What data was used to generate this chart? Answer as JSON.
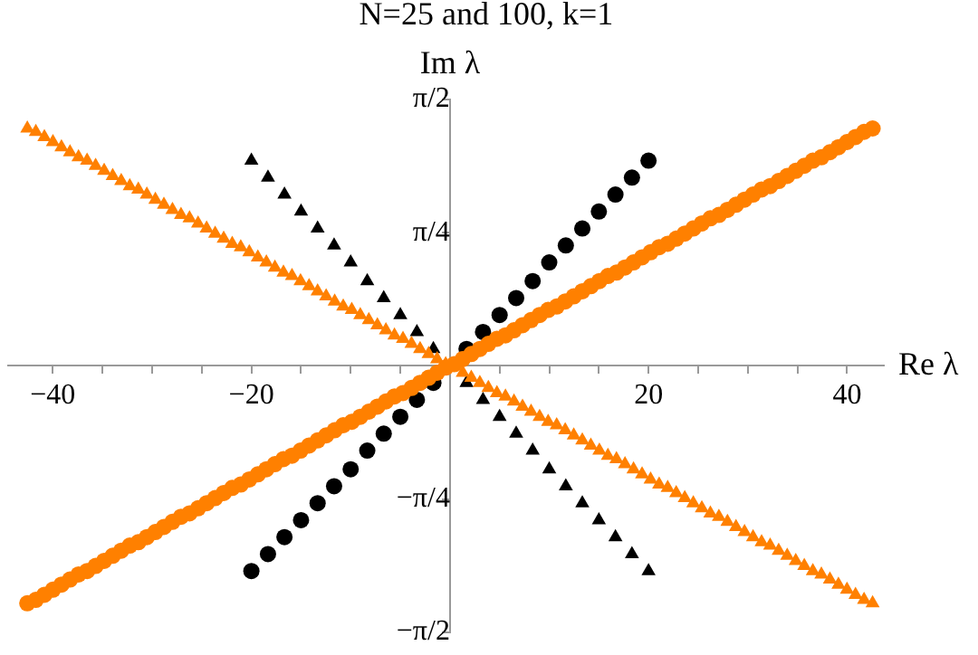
{
  "chart_data": {
    "type": "scatter",
    "title": "N=25 and 100, k=1",
    "xlabel": "Re λ",
    "ylabel": "Im λ",
    "xlim": [
      -44.5,
      43.7
    ],
    "ylim": [
      -1.5708,
      1.5708
    ],
    "xticks": [
      -40,
      {
        "value": -35,
        "label": null
      },
      {
        "value": -30,
        "label": null
      },
      {
        "value": -25,
        "label": null
      },
      -20,
      {
        "value": -15,
        "label": null
      },
      {
        "value": -10,
        "label": null
      },
      {
        "value": -5,
        "label": null
      },
      {
        "value": 5,
        "label": null
      },
      {
        "value": 10,
        "label": null
      },
      {
        "value": 15,
        "label": null
      },
      20,
      {
        "value": 25,
        "label": null
      },
      {
        "value": 30,
        "label": null
      },
      {
        "value": 35,
        "label": null
      },
      40
    ],
    "yticks": [
      {
        "value": -1.5708,
        "label": "−π/2"
      },
      {
        "value": -0.7854,
        "label": "−π/4"
      },
      {
        "value": 0.7854,
        "label": "π/4"
      },
      {
        "value": 1.5708,
        "label": "π/2"
      }
    ],
    "grid": false,
    "legend": false,
    "series": [
      {
        "color": "#ff8000",
        "marker": "circle",
        "x": [
          -42.57,
          -41.71,
          -40.85,
          -39.99,
          -39.13,
          -38.27,
          -37.41,
          -36.55,
          -35.69,
          -34.83,
          -33.97,
          -33.11,
          -32.25,
          -31.39,
          -30.53,
          -29.67,
          -28.81,
          -27.95,
          -27.09,
          -26.23,
          -25.37,
          -24.51,
          -23.65,
          -22.79,
          -21.93,
          -21.07,
          -20.21,
          -19.35,
          -18.49,
          -17.63,
          -16.77,
          -15.91,
          -15.05,
          -14.19,
          -13.33,
          -12.47,
          -11.61,
          -10.75,
          -9.89,
          -9.03,
          -8.17,
          -7.31,
          -6.45,
          -5.59,
          -4.73,
          -3.87,
          -3.01,
          -2.15,
          -1.29,
          -0.43,
          0.43,
          1.29,
          2.15,
          3.01,
          3.87,
          4.73,
          5.59,
          6.45,
          7.31,
          8.17,
          9.03,
          9.89,
          10.75,
          11.61,
          12.47,
          13.33,
          14.19,
          15.05,
          15.91,
          16.77,
          17.63,
          18.49,
          19.35,
          20.21,
          21.07,
          21.93,
          22.79,
          23.65,
          24.51,
          25.37,
          26.23,
          27.09,
          27.95,
          28.81,
          29.67,
          30.53,
          31.39,
          32.25,
          33.11,
          33.97,
          34.83,
          35.69,
          36.55,
          37.41,
          38.27,
          39.13,
          39.99,
          40.85,
          41.71,
          42.57
        ],
        "values": [
          -1.4,
          -1.38,
          -1.35,
          -1.32,
          -1.29,
          -1.26,
          -1.23,
          -1.21,
          -1.18,
          -1.15,
          -1.12,
          -1.09,
          -1.06,
          -1.04,
          -1.01,
          -0.98,
          -0.95,
          -0.92,
          -0.89,
          -0.87,
          -0.84,
          -0.81,
          -0.78,
          -0.75,
          -0.72,
          -0.7,
          -0.67,
          -0.64,
          -0.61,
          -0.58,
          -0.55,
          -0.53,
          -0.5,
          -0.47,
          -0.44,
          -0.41,
          -0.38,
          -0.35,
          -0.33,
          -0.3,
          -0.27,
          -0.24,
          -0.21,
          -0.18,
          -0.16,
          -0.13,
          -0.1,
          -0.07,
          -0.04,
          -0.01,
          0.01,
          0.04,
          0.07,
          0.1,
          0.13,
          0.16,
          0.18,
          0.21,
          0.24,
          0.27,
          0.3,
          0.33,
          0.35,
          0.38,
          0.41,
          0.44,
          0.47,
          0.5,
          0.53,
          0.55,
          0.58,
          0.61,
          0.64,
          0.67,
          0.7,
          0.72,
          0.75,
          0.78,
          0.81,
          0.84,
          0.87,
          0.89,
          0.92,
          0.95,
          0.98,
          1.01,
          1.04,
          1.06,
          1.09,
          1.12,
          1.15,
          1.18,
          1.21,
          1.23,
          1.26,
          1.29,
          1.32,
          1.35,
          1.38,
          1.4
        ]
      },
      {
        "color": "#ff8000",
        "marker": "triangle",
        "x": [
          -42.57,
          -41.71,
          -40.85,
          -39.99,
          -39.13,
          -38.27,
          -37.41,
          -36.55,
          -35.69,
          -34.83,
          -33.97,
          -33.11,
          -32.25,
          -31.39,
          -30.53,
          -29.67,
          -28.81,
          -27.95,
          -27.09,
          -26.23,
          -25.37,
          -24.51,
          -23.65,
          -22.79,
          -21.93,
          -21.07,
          -20.21,
          -19.35,
          -18.49,
          -17.63,
          -16.77,
          -15.91,
          -15.05,
          -14.19,
          -13.33,
          -12.47,
          -11.61,
          -10.75,
          -9.89,
          -9.03,
          -8.17,
          -7.31,
          -6.45,
          -5.59,
          -4.73,
          -3.87,
          -3.01,
          -2.15,
          -1.29,
          -0.43,
          0.43,
          1.29,
          2.15,
          3.01,
          3.87,
          4.73,
          5.59,
          6.45,
          7.31,
          8.17,
          9.03,
          9.89,
          10.75,
          11.61,
          12.47,
          13.33,
          14.19,
          15.05,
          15.91,
          16.77,
          17.63,
          18.49,
          19.35,
          20.21,
          21.07,
          21.93,
          22.79,
          23.65,
          24.51,
          25.37,
          26.23,
          27.09,
          27.95,
          28.81,
          29.67,
          30.53,
          31.39,
          32.25,
          33.11,
          33.97,
          34.83,
          35.69,
          36.55,
          37.41,
          38.27,
          39.13,
          39.99,
          40.85,
          41.71,
          42.57
        ],
        "values": [
          1.4,
          1.38,
          1.35,
          1.32,
          1.29,
          1.26,
          1.23,
          1.21,
          1.18,
          1.15,
          1.12,
          1.09,
          1.06,
          1.04,
          1.01,
          0.98,
          0.95,
          0.92,
          0.89,
          0.87,
          0.84,
          0.81,
          0.78,
          0.75,
          0.72,
          0.7,
          0.67,
          0.64,
          0.61,
          0.58,
          0.55,
          0.53,
          0.5,
          0.47,
          0.44,
          0.41,
          0.38,
          0.35,
          0.33,
          0.3,
          0.27,
          0.24,
          0.21,
          0.18,
          0.16,
          0.13,
          0.1,
          0.07,
          0.04,
          0.01,
          null,
          -0.04,
          -0.07,
          -0.1,
          -0.13,
          -0.16,
          -0.18,
          -0.21,
          -0.24,
          -0.27,
          -0.3,
          -0.33,
          -0.35,
          -0.38,
          -0.41,
          -0.44,
          -0.47,
          -0.5,
          -0.53,
          -0.55,
          -0.58,
          -0.61,
          -0.64,
          -0.67,
          -0.7,
          -0.72,
          -0.75,
          -0.78,
          -0.81,
          -0.84,
          -0.87,
          -0.89,
          -0.92,
          -0.95,
          -0.98,
          -1.01,
          -1.04,
          -1.06,
          -1.09,
          -1.12,
          -1.15,
          -1.18,
          -1.21,
          -1.23,
          -1.26,
          -1.29,
          -1.32,
          -1.35,
          -1.38,
          -1.4
        ]
      },
      {
        "color": "#000000",
        "marker": "circle",
        "x": [
          -20,
          -18.33,
          -16.67,
          -15,
          -13.33,
          -11.67,
          -10,
          -8.33,
          -6.67,
          -5,
          -3.33,
          -1.67,
          0,
          1.67,
          3.33,
          5,
          6.67,
          8.33,
          10,
          11.67,
          13.33,
          15,
          16.67,
          18.33,
          20
        ],
        "values": [
          -1.21,
          -1.11,
          -1.01,
          -0.91,
          -0.81,
          -0.71,
          -0.61,
          -0.5,
          -0.4,
          -0.3,
          -0.2,
          -0.1,
          null,
          0.1,
          0.2,
          0.3,
          0.4,
          0.5,
          0.61,
          0.71,
          0.81,
          0.91,
          1.01,
          1.11,
          1.21
        ]
      },
      {
        "color": "#000000",
        "marker": "triangle",
        "x": [
          -20,
          -18.33,
          -16.67,
          -15,
          -13.33,
          -11.67,
          -10,
          -8.33,
          -6.67,
          -5,
          -3.33,
          -1.67,
          0,
          1.67,
          3.33,
          5,
          6.67,
          8.33,
          10,
          11.67,
          13.33,
          15,
          16.67,
          18.33,
          20
        ],
        "values": [
          1.21,
          1.11,
          1.01,
          0.91,
          0.81,
          0.71,
          0.61,
          0.5,
          0.4,
          0.3,
          0.2,
          0.1,
          null,
          -0.1,
          -0.2,
          -0.3,
          -0.4,
          -0.5,
          -0.61,
          -0.71,
          -0.81,
          -0.91,
          -1.01,
          -1.11,
          -1.21
        ]
      }
    ]
  }
}
